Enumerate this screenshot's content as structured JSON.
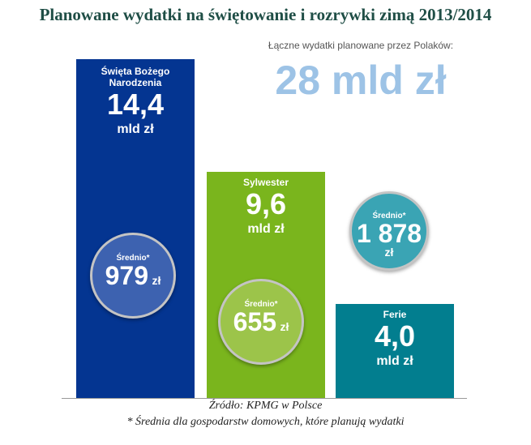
{
  "title": "Planowane wydatki na świętowanie i rozrywki zimą 2013/2014",
  "total": {
    "label": "Łączne wydatki planowane przez Polaków:",
    "value": "28 mld zł"
  },
  "chart_data": {
    "type": "bar",
    "categories": [
      "Święta Bożego Narodzenia",
      "Sylwester",
      "Ferie"
    ],
    "values": [
      14.4,
      9.6,
      4.0
    ],
    "unit": "mld zł",
    "ylim": [
      0,
      14.4
    ],
    "bars": [
      {
        "label": "Święta Bożego Narodzenia",
        "value_text": "14,4",
        "unit": "mld zł",
        "color": "#043591"
      },
      {
        "label": "Sylwester",
        "value_text": "9,6",
        "unit": "mld zł",
        "color": "#7ab51d"
      },
      {
        "label": "Ferie",
        "value_text": "4,0",
        "unit": "mld zł",
        "color": "#027e8f"
      }
    ],
    "averages": [
      {
        "label": "Średnio*",
        "value": "979",
        "unit": "zł",
        "color": "#3d62b0"
      },
      {
        "label": "Średnio*",
        "value": "655",
        "unit": "zł",
        "color": "#9cc44a"
      },
      {
        "label": "Średnio*",
        "value": "1 878",
        "unit": "zł",
        "color": "#3aa4b4"
      }
    ]
  },
  "footer": {
    "source": "Źródło: KPMG w Polsce",
    "note": "* Średnia dla gospodarstw domowych, które planują wydatki"
  }
}
